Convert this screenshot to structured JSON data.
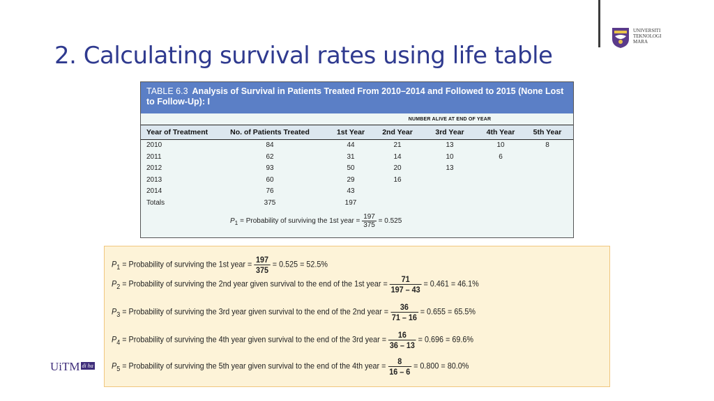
{
  "slide": {
    "title": "2. Calculating survival rates using life table",
    "logo_text": [
      "UNIVERSITI",
      "TEKNOLOGI",
      "MARA"
    ],
    "footer_logo": {
      "brand": "UiTM",
      "tag": "di ha"
    }
  },
  "table": {
    "number": "TABLE 6.3",
    "title": "Analysis of Survival in Patients Treated From 2010–2014 and Followed to 2015 (None Lost to Follow-Up): I",
    "span_header": "NUMBER ALIVE AT END OF YEAR",
    "columns": [
      "Year of Treatment",
      "No. of Patients Treated",
      "1st Year",
      "2nd Year",
      "3rd Year",
      "4th Year",
      "5th Year"
    ],
    "rows": [
      [
        "2010",
        "84",
        "44",
        "21",
        "13",
        "10",
        "8"
      ],
      [
        "2011",
        "62",
        "31",
        "14",
        "10",
        "6",
        ""
      ],
      [
        "2012",
        "93",
        "50",
        "20",
        "13",
        "",
        ""
      ],
      [
        "2013",
        "60",
        "29",
        "16",
        "",
        "",
        ""
      ],
      [
        "2014",
        "76",
        "43",
        "",
        "",
        "",
        ""
      ],
      [
        "Totals",
        "375",
        "197",
        "",
        "",
        "",
        ""
      ]
    ],
    "footnote": {
      "sym": "P",
      "sub": "1",
      "text": " = Probability of surviving the 1st year = ",
      "num": "197",
      "den": "375",
      "result": " = 0.525"
    }
  },
  "equations": [
    {
      "sym": "P",
      "sub": "1",
      "text": " = Probability of surviving the 1st year = ",
      "num": "197",
      "den": "375",
      "result": " = 0.525 = 52.5%"
    },
    {
      "sym": "P",
      "sub": "2",
      "text": " = Probability of surviving the 2nd year given survival to the end of the 1st year = ",
      "num": "71",
      "den": "197 – 43",
      "result": " = 0.461 = 46.1%"
    },
    {
      "sym": "P",
      "sub": "3",
      "text": " = Probability of surviving the 3rd year given survival to the end of the 2nd year = ",
      "num": "36",
      "den": "71 – 16",
      "result": " = 0.655 = 65.5%"
    },
    {
      "sym": "P",
      "sub": "4",
      "text": " = Probability of surviving the 4th year given survival to the end of the 3rd year = ",
      "num": "16",
      "den": "36 – 13",
      "result": " = 0.696 = 69.6%"
    },
    {
      "sym": "P",
      "sub": "5",
      "text": " = Probability of surviving the 5th year given survival to the end of the 4th year = ",
      "num": "8",
      "den": "16 – 6",
      "result": " = 0.800 = 80.0%"
    }
  ]
}
